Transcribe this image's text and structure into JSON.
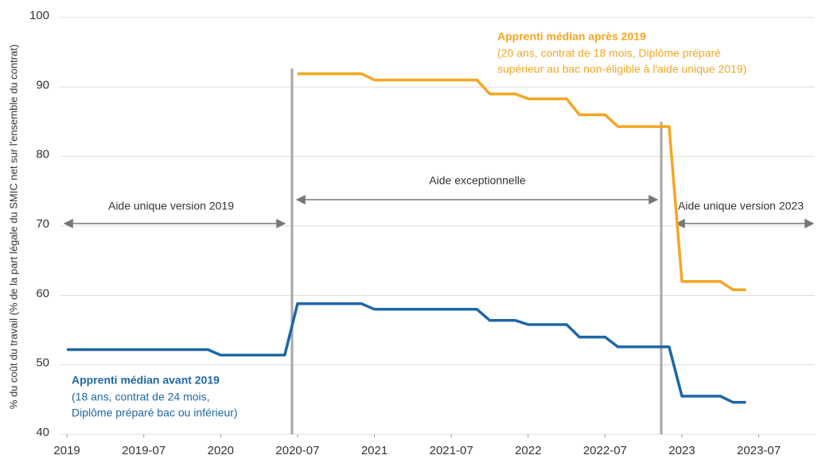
{
  "chart_data": {
    "type": "line",
    "y_label": "% du coût du travail (% de la part légale du SMIC net sur l'ensemble du contrat)",
    "x": [
      "2019-01",
      "2019-02",
      "2019-03",
      "2019-04",
      "2019-05",
      "2019-06",
      "2019-07",
      "2019-08",
      "2019-09",
      "2019-10",
      "2019-11",
      "2019-12",
      "2020-01",
      "2020-02",
      "2020-03",
      "2020-04",
      "2020-05",
      "2020-06",
      "2020-07",
      "2020-08",
      "2020-09",
      "2020-10",
      "2020-11",
      "2020-12",
      "2021-01",
      "2021-02",
      "2021-03",
      "2021-04",
      "2021-05",
      "2021-06",
      "2021-07",
      "2021-08",
      "2021-09",
      "2021-10",
      "2021-11",
      "2021-12",
      "2022-01",
      "2022-02",
      "2022-03",
      "2022-04",
      "2022-05",
      "2022-06",
      "2022-07",
      "2022-08",
      "2022-09",
      "2022-10",
      "2022-11",
      "2022-12",
      "2023-01",
      "2023-02",
      "2023-03",
      "2023-04",
      "2023-05",
      "2023-06"
    ],
    "series": [
      {
        "name": "Apprenti médian avant 2019",
        "color": "#1f67a6",
        "values": [
          52.2,
          52.2,
          52.2,
          52.2,
          52.2,
          52.2,
          52.2,
          52.2,
          52.2,
          52.2,
          52.2,
          52.2,
          51.4,
          51.4,
          51.4,
          51.4,
          51.4,
          51.4,
          58.8,
          58.8,
          58.8,
          58.8,
          58.8,
          58.8,
          58.0,
          58.0,
          58.0,
          58.0,
          58.0,
          58.0,
          58.0,
          58.0,
          58.0,
          56.4,
          56.4,
          56.4,
          55.8,
          55.8,
          55.8,
          55.8,
          54.0,
          54.0,
          54.0,
          52.6,
          52.6,
          52.6,
          52.6,
          52.6,
          45.5,
          45.5,
          45.5,
          45.5,
          44.6,
          44.6
        ]
      },
      {
        "name": "Apprenti médian après 2019",
        "color": "#f5a623",
        "values": [
          null,
          null,
          null,
          null,
          null,
          null,
          null,
          null,
          null,
          null,
          null,
          null,
          null,
          null,
          null,
          null,
          null,
          null,
          91.9,
          91.9,
          91.9,
          91.9,
          91.9,
          91.9,
          91.0,
          91.0,
          91.0,
          91.0,
          91.0,
          91.0,
          91.0,
          91.0,
          91.0,
          89.0,
          89.0,
          89.0,
          88.3,
          88.3,
          88.3,
          88.3,
          86.0,
          86.0,
          86.0,
          84.3,
          84.3,
          84.3,
          84.3,
          84.3,
          62.0,
          62.0,
          62.0,
          62.0,
          60.8,
          60.8
        ]
      }
    ],
    "series_notes": [
      "(18 ans, contrat de 24 mois,",
      "Diplôme préparé bac ou inférieur)",
      "(20 ans, contrat de 18 mois, Diplôme préparé",
      "supérieur au bac non-éligible à l'aide unique 2019)"
    ],
    "periods": [
      "Aide unique version 2019",
      "Aide exceptionnelle",
      "Aide unique version 2023"
    ],
    "xlim": [
      "2018-12",
      "2023-11"
    ],
    "xticks": [
      "2019",
      "2019-07",
      "2020",
      "2020-07",
      "2021",
      "2021-07",
      "2022",
      "2022-07",
      "2023",
      "2023-07"
    ],
    "ylim": [
      40,
      100
    ],
    "yticks": [
      40,
      50,
      60,
      70,
      80,
      90,
      100
    ],
    "grid": true
  }
}
